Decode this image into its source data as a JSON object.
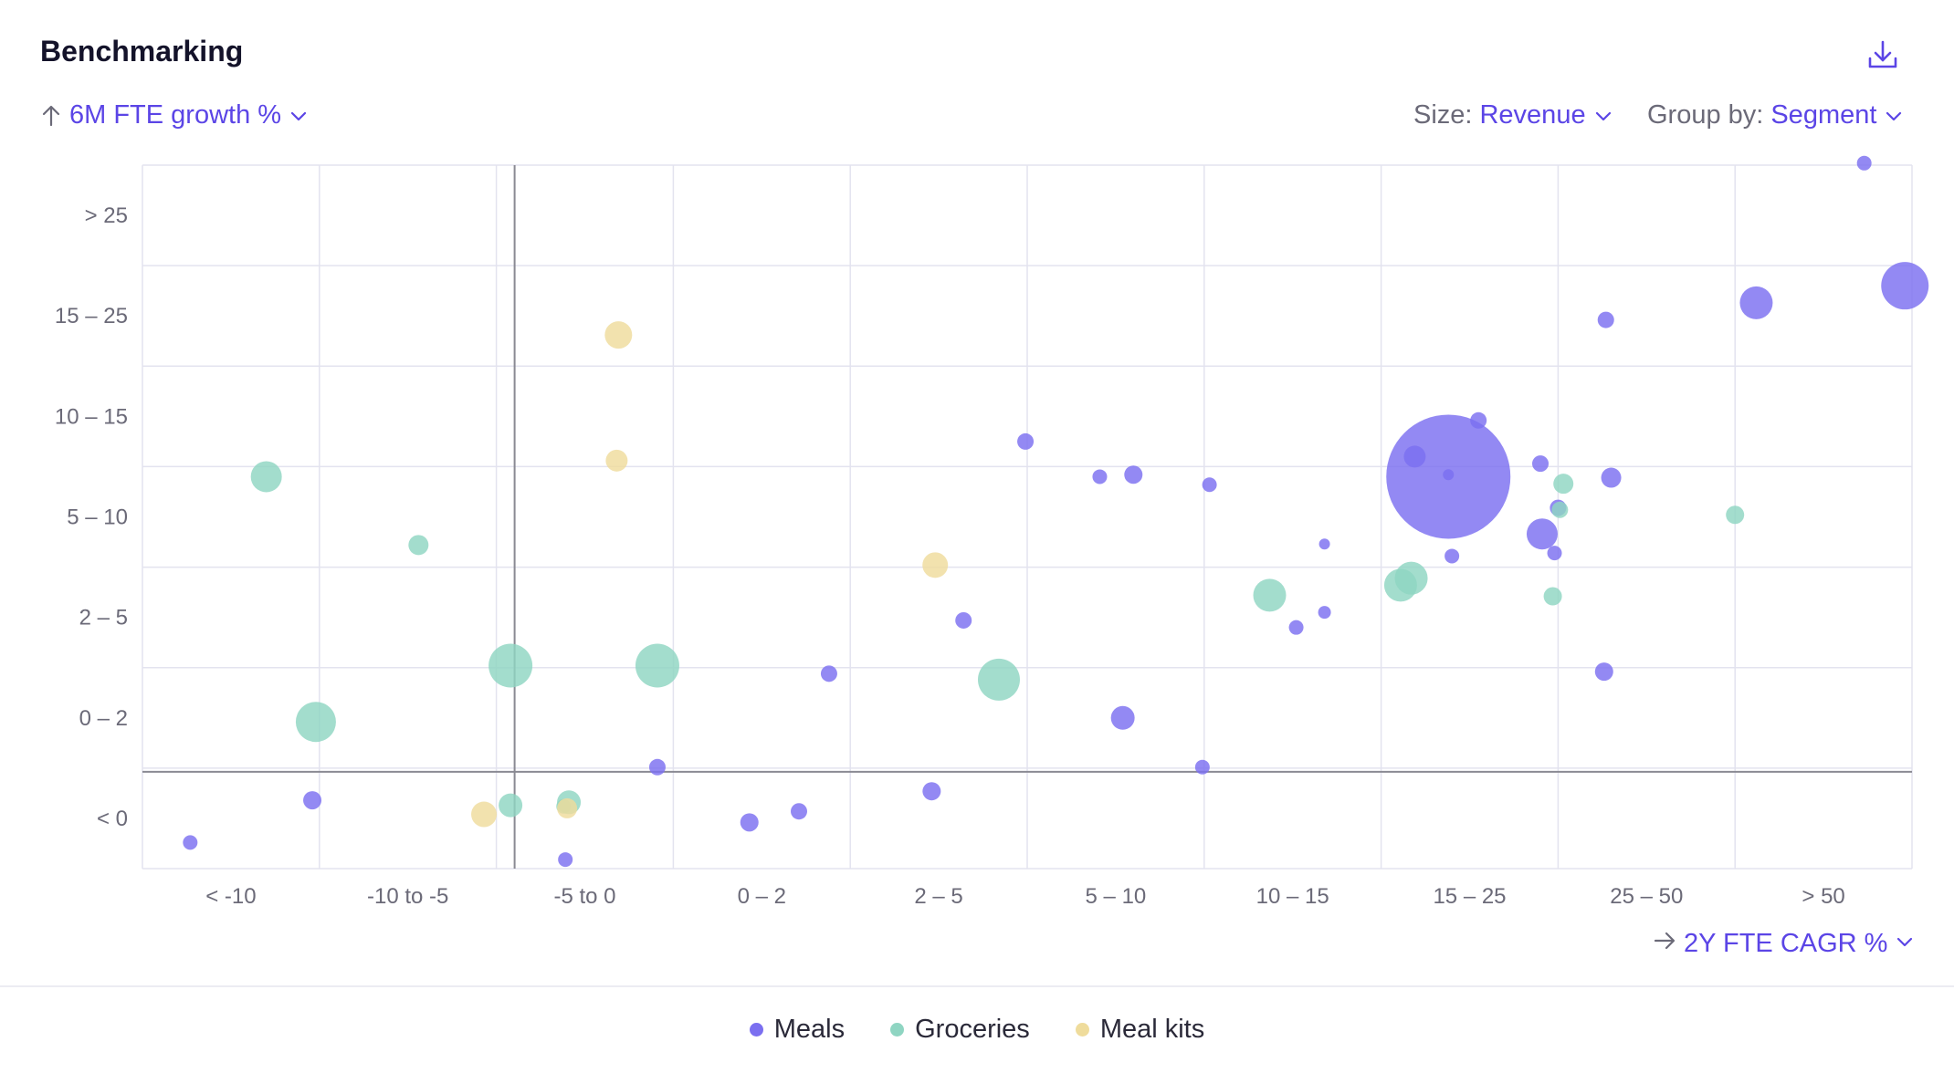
{
  "header": {
    "title": "Benchmarking",
    "download_icon": "download-icon"
  },
  "controls": {
    "y_metric": {
      "arrow_icon": "arrow-up-icon",
      "value": "6M FTE growth %"
    },
    "size": {
      "label": "Size:",
      "value": "Revenue"
    },
    "group_by": {
      "label": "Group by:",
      "value": "Segment"
    },
    "x_metric": {
      "arrow_icon": "arrow-right-icon",
      "value": "2Y FTE CAGR %"
    }
  },
  "colors": {
    "Meals": "#7b6ff0",
    "Groceries": "#8fd5c2",
    "Meal kits": "#efdc9c",
    "accent": "#5b45e6"
  },
  "legend": [
    {
      "label": "Meals",
      "color": "#7b6ff0"
    },
    {
      "label": "Groceries",
      "color": "#8fd5c2"
    },
    {
      "label": "Meal kits",
      "color": "#efdc9c"
    }
  ],
  "chart_data": {
    "type": "scatter",
    "x_categories": [
      "< -10",
      "-10 to -5",
      "-5 to 0",
      "0 – 2",
      "2 – 5",
      "5 – 10",
      "10 – 15",
      "15 – 25",
      "25 – 50",
      "> 50"
    ],
    "y_categories": [
      "< 0",
      "0 – 2",
      "2 – 5",
      "5 – 10",
      "10 – 15",
      "15 – 25",
      "> 25"
    ],
    "note_axes": "x/y are positions in category-bin units (0 = start of first bin); zero lines at x=2.0, y=1.0",
    "grid": true,
    "legend_position": "bottom-center",
    "series": [
      {
        "name": "Meals",
        "points": [
          {
            "x": 0.27,
            "y": 0.26,
            "r": 8
          },
          {
            "x": 0.96,
            "y": 0.68,
            "r": 10
          },
          {
            "x": 2.39,
            "y": 0.09,
            "r": 8
          },
          {
            "x": 2.91,
            "y": 1.01,
            "r": 9
          },
          {
            "x": 3.43,
            "y": 0.46,
            "r": 10
          },
          {
            "x": 3.71,
            "y": 0.57,
            "r": 9
          },
          {
            "x": 3.88,
            "y": 1.94,
            "r": 9
          },
          {
            "x": 4.99,
            "y": 4.25,
            "r": 9
          },
          {
            "x": 4.46,
            "y": 0.77,
            "r": 10
          },
          {
            "x": 4.64,
            "y": 2.47,
            "r": 9
          },
          {
            "x": 5.41,
            "y": 3.9,
            "r": 8
          },
          {
            "x": 5.6,
            "y": 3.92,
            "r": 10
          },
          {
            "x": 5.54,
            "y": 1.5,
            "r": 13
          },
          {
            "x": 6.03,
            "y": 3.82,
            "r": 8
          },
          {
            "x": 5.99,
            "y": 1.01,
            "r": 8
          },
          {
            "x": 6.68,
            "y": 2.55,
            "r": 7
          },
          {
            "x": 6.52,
            "y": 2.4,
            "r": 8
          },
          {
            "x": 6.68,
            "y": 3.23,
            "r": 6
          },
          {
            "x": 7.19,
            "y": 4.1,
            "r": 12
          },
          {
            "x": 7.38,
            "y": 3.9,
            "r": 68
          },
          {
            "x": 7.38,
            "y": 3.92,
            "r": 6
          },
          {
            "x": 7.4,
            "y": 3.11,
            "r": 8
          },
          {
            "x": 7.55,
            "y": 4.46,
            "r": 9
          },
          {
            "x": 7.9,
            "y": 4.03,
            "r": 9
          },
          {
            "x": 7.91,
            "y": 3.33,
            "r": 17
          },
          {
            "x": 8.0,
            "y": 3.59,
            "r": 9
          },
          {
            "x": 7.98,
            "y": 3.14,
            "r": 8
          },
          {
            "x": 8.27,
            "y": 5.46,
            "r": 9
          },
          {
            "x": 8.3,
            "y": 3.89,
            "r": 11
          },
          {
            "x": 8.26,
            "y": 1.96,
            "r": 10
          },
          {
            "x": 9.12,
            "y": 5.63,
            "r": 18
          },
          {
            "x": 9.73,
            "y": 7.02,
            "r": 8
          },
          {
            "x": 9.96,
            "y": 5.8,
            "r": 26
          }
        ]
      },
      {
        "name": "Groceries",
        "points": [
          {
            "x": 0.7,
            "y": 3.9,
            "r": 17
          },
          {
            "x": 0.98,
            "y": 1.46,
            "r": 22
          },
          {
            "x": 1.56,
            "y": 3.22,
            "r": 11
          },
          {
            "x": 2.08,
            "y": 2.02,
            "r": 24
          },
          {
            "x": 2.08,
            "y": 0.63,
            "r": 13
          },
          {
            "x": 2.41,
            "y": 0.66,
            "r": 13
          },
          {
            "x": 2.38,
            "y": 0.62,
            "r": 8
          },
          {
            "x": 2.91,
            "y": 2.02,
            "r": 24
          },
          {
            "x": 4.84,
            "y": 1.88,
            "r": 23
          },
          {
            "x": 6.37,
            "y": 2.72,
            "r": 18
          },
          {
            "x": 7.11,
            "y": 2.82,
            "r": 18
          },
          {
            "x": 7.17,
            "y": 2.89,
            "r": 18
          },
          {
            "x": 8.03,
            "y": 3.83,
            "r": 11
          },
          {
            "x": 8.01,
            "y": 3.57,
            "r": 9
          },
          {
            "x": 7.97,
            "y": 2.71,
            "r": 10
          },
          {
            "x": 9.0,
            "y": 3.52,
            "r": 10
          }
        ]
      },
      {
        "name": "Meal kits",
        "points": [
          {
            "x": 2.69,
            "y": 5.31,
            "r": 15
          },
          {
            "x": 2.68,
            "y": 4.06,
            "r": 12
          },
          {
            "x": 1.93,
            "y": 0.54,
            "r": 14
          },
          {
            "x": 2.4,
            "y": 0.6,
            "r": 11
          },
          {
            "x": 4.48,
            "y": 3.02,
            "r": 14
          }
        ]
      }
    ]
  }
}
